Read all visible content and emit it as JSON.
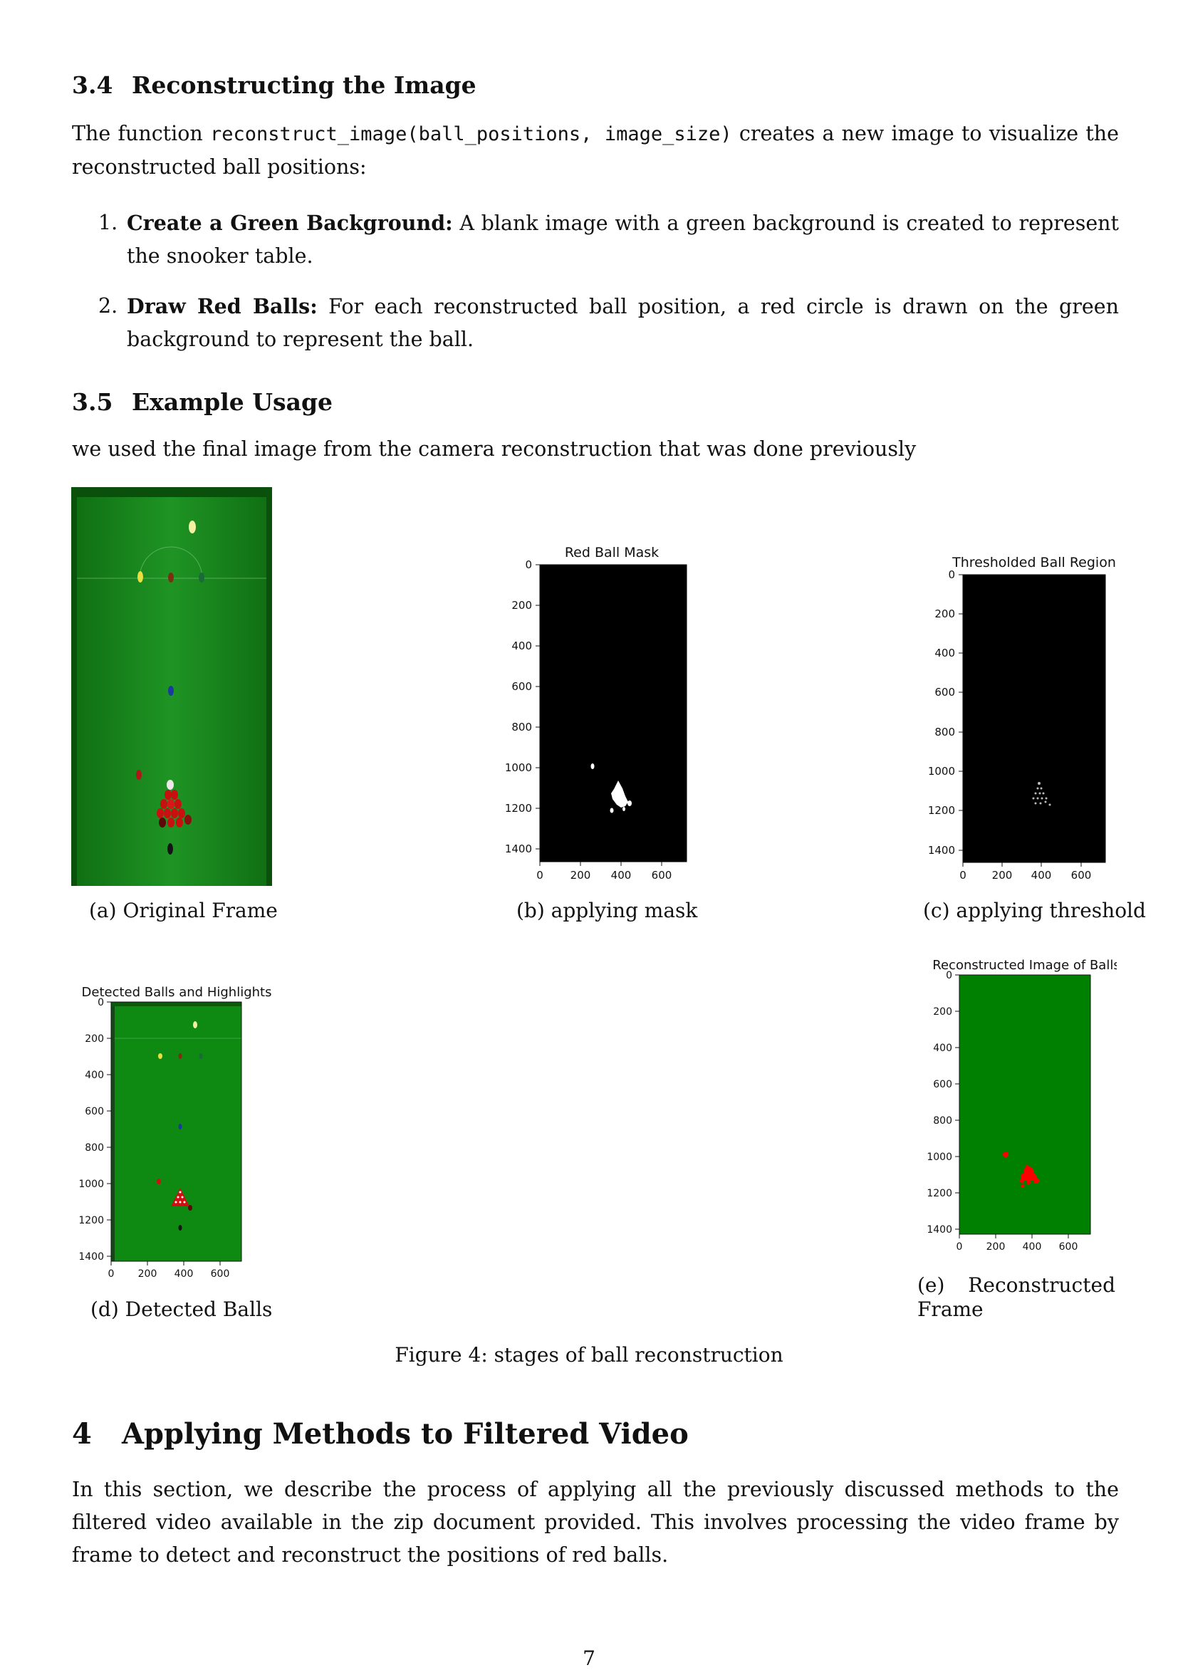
{
  "sec34": {
    "num": "3.4",
    "title": "Reconstructing the Image"
  },
  "intro": {
    "pre": "The function ",
    "code": "reconstruct_image(ball_positions, image_size)",
    "post": " creates a new image to visualize the reconstructed ball positions:"
  },
  "steps": [
    {
      "n": "1.",
      "bold": "Create a Green Background:",
      "text": " A blank image with a green background is created to represent the snooker table."
    },
    {
      "n": "2.",
      "bold": "Draw Red Balls:",
      "text": " For each reconstructed ball position, a red circle is drawn on the green background to represent the ball."
    }
  ],
  "sec35": {
    "num": "3.5",
    "title": "Example Usage"
  },
  "usage_text": "we used the final image from the camera reconstruction that was done previously",
  "colors": {
    "felt": "#1c8a1c",
    "plot_green": "#008000",
    "ball_red": "#d40000",
    "mask_bg": "#000000"
  },
  "subfigs": {
    "a": {
      "caption": "(a) Original Frame"
    },
    "b": {
      "caption": "(b) applying mask",
      "plot_title": "Red Ball Mask"
    },
    "c": {
      "caption": "(c) applying threshold",
      "plot_title": "Thresholded Ball Region"
    },
    "d": {
      "caption": "(d) Detected Balls",
      "plot_title": "Detected Balls and Highlights"
    },
    "e": {
      "caption_1": "(e)",
      "caption_2": "Reconstructed",
      "caption_3": "Frame",
      "plot_title": "Reconstructed Image of Balls"
    }
  },
  "chart_data": [
    {
      "type": "image",
      "title": "Red Ball Mask",
      "x_ticks": [
        "0",
        "200",
        "400",
        "600"
      ],
      "y_ticks": [
        "0",
        "200",
        "400",
        "600",
        "800",
        "1000",
        "1200",
        "1400"
      ],
      "xlim": [
        0,
        720
      ],
      "ylim": [
        1470,
        0
      ]
    },
    {
      "type": "image",
      "title": "Thresholded Ball Region",
      "x_ticks": [
        "0",
        "200",
        "400",
        "600"
      ],
      "y_ticks": [
        "0",
        "200",
        "400",
        "600",
        "800",
        "1000",
        "1200",
        "1400"
      ],
      "xlim": [
        0,
        720
      ],
      "ylim": [
        1470,
        0
      ]
    },
    {
      "type": "image",
      "title": "Detected Balls and Highlights",
      "x_ticks": [
        "0",
        "200",
        "400",
        "600"
      ],
      "y_ticks": [
        "0",
        "200",
        "400",
        "600",
        "800",
        "1000",
        "1200",
        "1400"
      ],
      "xlim": [
        0,
        720
      ],
      "ylim": [
        1440,
        0
      ]
    },
    {
      "type": "image",
      "title": "Reconstructed Image of Balls",
      "x_ticks": [
        "0",
        "200",
        "400",
        "600"
      ],
      "y_ticks": [
        "0",
        "200",
        "400",
        "600",
        "800",
        "1000",
        "1200",
        "1400"
      ],
      "xlim": [
        0,
        720
      ],
      "ylim": [
        1440,
        0
      ]
    }
  ],
  "figure_caption": "Figure 4: stages of ball reconstruction",
  "sec4": {
    "num": "4",
    "title": "Applying Methods to Filtered Video"
  },
  "sec4_text": "In this section, we describe the process of applying all the previously discussed methods to the filtered video available in the zip document provided. This involves processing the video frame by frame to detect and reconstruct the positions of red balls.",
  "page_number": "7"
}
